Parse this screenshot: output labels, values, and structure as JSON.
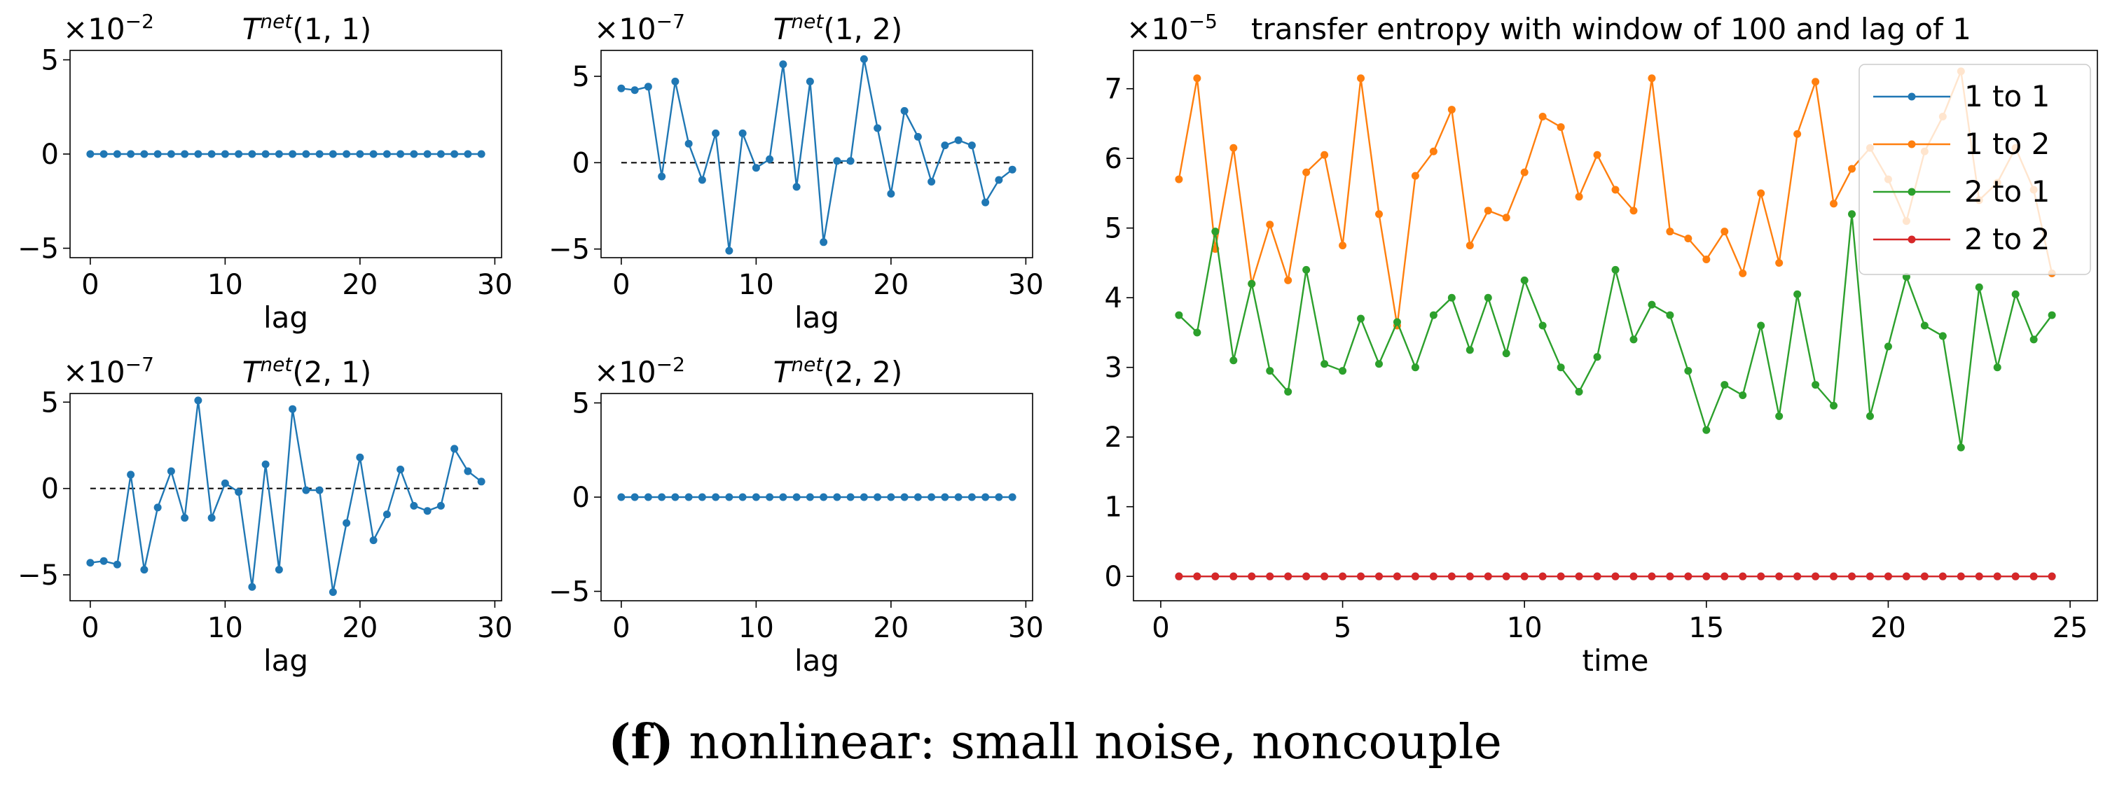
{
  "caption": {
    "label": "(f)",
    "text": "nonlinear: small noise, noncouple"
  },
  "colors": {
    "c1": "#1f77b4",
    "c2": "#ff7f0e",
    "c3": "#2ca02c",
    "c4": "#d62728"
  },
  "chart_data": [
    {
      "id": "p11",
      "type": "line",
      "title": "T^{net}(1,1)",
      "title_base": "T",
      "title_sup": "net",
      "title_args": "(1, 1)",
      "scale": "×10",
      "scale_exp": "−2",
      "xlabel": "lag",
      "ylabel": "",
      "xlim": [
        -1.5,
        30.5
      ],
      "ylim": [
        -5.5,
        5.5
      ],
      "xticks": [
        0,
        10,
        20,
        30
      ],
      "xtick_labels": [
        "0",
        "10",
        "20",
        "30"
      ],
      "yticks": [
        -5,
        0,
        5
      ],
      "ytick_labels": [
        "−5",
        "0",
        "5"
      ],
      "zero_line": false,
      "x": [
        0,
        1,
        2,
        3,
        4,
        5,
        6,
        7,
        8,
        9,
        10,
        11,
        12,
        13,
        14,
        15,
        16,
        17,
        18,
        19,
        20,
        21,
        22,
        23,
        24,
        25,
        26,
        27,
        28,
        29
      ],
      "values": [
        0,
        0,
        0,
        0,
        0,
        0,
        0,
        0,
        0,
        0,
        0,
        0,
        0,
        0,
        0,
        0,
        0,
        0,
        0,
        0,
        0,
        0,
        0,
        0,
        0,
        0,
        0,
        0,
        0,
        0
      ]
    },
    {
      "id": "p12",
      "type": "line",
      "title": "T^{net}(1,2)",
      "title_base": "T",
      "title_sup": "net",
      "title_args": "(1, 2)",
      "scale": "×10",
      "scale_exp": "−7",
      "xlabel": "lag",
      "ylabel": "",
      "xlim": [
        -1.5,
        30.5
      ],
      "ylim": [
        -5.5,
        6.5
      ],
      "xticks": [
        0,
        10,
        20,
        30
      ],
      "xtick_labels": [
        "0",
        "10",
        "20",
        "30"
      ],
      "yticks": [
        -5,
        0,
        5
      ],
      "ytick_labels": [
        "−5",
        "0",
        "5"
      ],
      "zero_line": true,
      "x": [
        0,
        1,
        2,
        3,
        4,
        5,
        6,
        7,
        8,
        9,
        10,
        11,
        12,
        13,
        14,
        15,
        16,
        17,
        18,
        19,
        20,
        21,
        22,
        23,
        24,
        25,
        26,
        27,
        28,
        29
      ],
      "values": [
        4.3,
        4.2,
        4.4,
        -0.8,
        4.7,
        1.1,
        -1.0,
        1.7,
        -5.1,
        1.7,
        -0.3,
        0.2,
        5.7,
        -1.4,
        4.7,
        -4.6,
        0.1,
        0.1,
        6.0,
        2.0,
        -1.8,
        3.0,
        1.5,
        -1.1,
        1.0,
        1.3,
        1.0,
        -2.3,
        -1.0,
        -0.4
      ]
    },
    {
      "id": "p21",
      "type": "line",
      "title": "T^{net}(2,1)",
      "title_base": "T",
      "title_sup": "net",
      "title_args": "(2, 1)",
      "scale": "×10",
      "scale_exp": "−7",
      "xlabel": "lag",
      "ylabel": "",
      "xlim": [
        -1.5,
        30.5
      ],
      "ylim": [
        -6.5,
        5.5
      ],
      "xticks": [
        0,
        10,
        20,
        30
      ],
      "xtick_labels": [
        "0",
        "10",
        "20",
        "30"
      ],
      "yticks": [
        -5,
        0,
        5
      ],
      "ytick_labels": [
        "−5",
        "0",
        "5"
      ],
      "zero_line": true,
      "x": [
        0,
        1,
        2,
        3,
        4,
        5,
        6,
        7,
        8,
        9,
        10,
        11,
        12,
        13,
        14,
        15,
        16,
        17,
        18,
        19,
        20,
        21,
        22,
        23,
        24,
        25,
        26,
        27,
        28,
        29
      ],
      "values": [
        -4.3,
        -4.2,
        -4.4,
        0.8,
        -4.7,
        -1.1,
        1.0,
        -1.7,
        5.1,
        -1.7,
        0.3,
        -0.2,
        -5.7,
        1.4,
        -4.7,
        4.6,
        -0.1,
        -0.1,
        -6.0,
        -2.0,
        1.8,
        -3.0,
        -1.5,
        1.1,
        -1.0,
        -1.3,
        -1.0,
        2.3,
        1.0,
        0.4
      ]
    },
    {
      "id": "p22",
      "type": "line",
      "title": "T^{net}(2,2)",
      "title_base": "T",
      "title_sup": "net",
      "title_args": "(2, 2)",
      "scale": "×10",
      "scale_exp": "−2",
      "xlabel": "lag",
      "ylabel": "",
      "xlim": [
        -1.5,
        30.5
      ],
      "ylim": [
        -5.5,
        5.5
      ],
      "xticks": [
        0,
        10,
        20,
        30
      ],
      "xtick_labels": [
        "0",
        "10",
        "20",
        "30"
      ],
      "yticks": [
        -5,
        0,
        5
      ],
      "ytick_labels": [
        "−5",
        "0",
        "5"
      ],
      "zero_line": false,
      "x": [
        0,
        1,
        2,
        3,
        4,
        5,
        6,
        7,
        8,
        9,
        10,
        11,
        12,
        13,
        14,
        15,
        16,
        17,
        18,
        19,
        20,
        21,
        22,
        23,
        24,
        25,
        26,
        27,
        28,
        29
      ],
      "values": [
        0,
        0,
        0,
        0,
        0,
        0,
        0,
        0,
        0,
        0,
        0,
        0,
        0,
        0,
        0,
        0,
        0,
        0,
        0,
        0,
        0,
        0,
        0,
        0,
        0,
        0,
        0,
        0,
        0,
        0
      ]
    },
    {
      "id": "pte",
      "type": "line",
      "title": "transfer entropy with window of 100 and lag of 1",
      "scale": "×10",
      "scale_exp": "−5",
      "xlabel": "time",
      "ylabel": "",
      "xlim": [
        -0.75,
        25.75
      ],
      "ylim": [
        -0.35,
        7.55
      ],
      "xticks": [
        0,
        5,
        10,
        15,
        20,
        25
      ],
      "xtick_labels": [
        "0",
        "5",
        "10",
        "15",
        "20",
        "25"
      ],
      "yticks": [
        0,
        1,
        2,
        3,
        4,
        5,
        6,
        7
      ],
      "ytick_labels": [
        "0",
        "1",
        "2",
        "3",
        "4",
        "5",
        "6",
        "7"
      ],
      "legend_position": "top-right",
      "x": [
        0.5,
        1.0,
        1.5,
        2.0,
        2.5,
        3.0,
        3.5,
        4.0,
        4.5,
        5.0,
        5.5,
        6.0,
        6.5,
        7.0,
        7.5,
        8.0,
        8.5,
        9.0,
        9.5,
        10.0,
        10.5,
        11.0,
        11.5,
        12.0,
        12.5,
        13.0,
        13.5,
        14.0,
        14.5,
        15.0,
        15.5,
        16.0,
        16.5,
        17.0,
        17.5,
        18.0,
        18.5,
        19.0,
        19.5,
        20.0,
        20.5,
        21.0,
        21.5,
        22.0,
        22.5,
        23.0,
        23.5,
        24.0,
        24.5
      ],
      "series": [
        {
          "name": "1 to 1",
          "color": "#1f77b4",
          "values": [
            0,
            0,
            0,
            0,
            0,
            0,
            0,
            0,
            0,
            0,
            0,
            0,
            0,
            0,
            0,
            0,
            0,
            0,
            0,
            0,
            0,
            0,
            0,
            0,
            0,
            0,
            0,
            0,
            0,
            0,
            0,
            0,
            0,
            0,
            0,
            0,
            0,
            0,
            0,
            0,
            0,
            0,
            0,
            0,
            0,
            0,
            0,
            0,
            0
          ]
        },
        {
          "name": "1 to 2",
          "color": "#ff7f0e",
          "values": [
            5.7,
            7.15,
            4.7,
            6.15,
            4.2,
            5.05,
            4.25,
            5.8,
            6.05,
            4.75,
            7.15,
            5.2,
            3.6,
            5.75,
            6.1,
            6.7,
            4.75,
            5.25,
            5.15,
            5.8,
            6.6,
            6.45,
            5.45,
            6.05,
            5.55,
            5.25,
            7.15,
            4.95,
            4.85,
            4.55,
            4.95,
            4.35,
            5.5,
            4.5,
            6.35,
            7.1,
            5.35,
            5.85,
            6.15,
            5.7,
            5.1,
            6.1,
            6.6,
            7.25,
            5.4,
            5.65,
            6.15,
            5.55,
            4.35
          ]
        },
        {
          "name": "2 to 1",
          "color": "#2ca02c",
          "values": [
            3.75,
            3.5,
            4.95,
            3.1,
            4.2,
            2.95,
            2.65,
            4.4,
            3.05,
            2.95,
            3.7,
            3.05,
            3.65,
            3.0,
            3.75,
            4.0,
            3.25,
            4.0,
            3.2,
            4.25,
            3.6,
            3.0,
            2.65,
            3.15,
            4.4,
            3.4,
            3.9,
            3.75,
            2.95,
            2.1,
            2.75,
            2.6,
            3.6,
            2.3,
            4.05,
            2.75,
            2.45,
            5.2,
            2.3,
            3.3,
            4.3,
            3.6,
            3.45,
            1.85,
            4.15,
            3.0,
            4.05,
            3.4,
            3.75
          ]
        },
        {
          "name": "2 to 2",
          "color": "#d62728",
          "values": [
            0,
            0,
            0,
            0,
            0,
            0,
            0,
            0,
            0,
            0,
            0,
            0,
            0,
            0,
            0,
            0,
            0,
            0,
            0,
            0,
            0,
            0,
            0,
            0,
            0,
            0,
            0,
            0,
            0,
            0,
            0,
            0,
            0,
            0,
            0,
            0,
            0,
            0,
            0,
            0,
            0,
            0,
            0,
            0,
            0,
            0,
            0,
            0,
            0
          ]
        }
      ]
    }
  ]
}
